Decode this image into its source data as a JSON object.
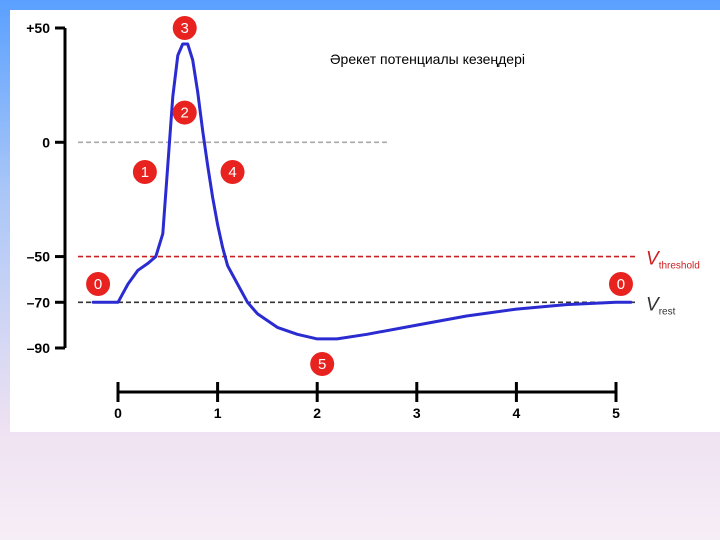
{
  "chart_data": {
    "type": "line",
    "title": "Әрекет потенциалы кезеңдері",
    "xlabel": "",
    "ylabel": "",
    "xlim": [
      0,
      5
    ],
    "ylim": [
      -90,
      50
    ],
    "x_ticks": [
      "0",
      "1",
      "2",
      "3",
      "4",
      "5"
    ],
    "y_ticks": [
      {
        "value": 50,
        "label": "+50"
      },
      {
        "value": 0,
        "label": "0"
      },
      {
        "value": -50,
        "label": "–50"
      },
      {
        "value": -70,
        "label": "–70"
      },
      {
        "value": -90,
        "label": "–90"
      }
    ],
    "series": [
      {
        "color": "#2a2bd0",
        "points": [
          [
            -0.25,
            -70
          ],
          [
            0.0,
            -70
          ],
          [
            0.1,
            -62
          ],
          [
            0.2,
            -56
          ],
          [
            0.3,
            -53
          ],
          [
            0.38,
            -50
          ],
          [
            0.45,
            -40
          ],
          [
            0.5,
            -10
          ],
          [
            0.55,
            20
          ],
          [
            0.6,
            38
          ],
          [
            0.65,
            43
          ],
          [
            0.7,
            43
          ],
          [
            0.75,
            36
          ],
          [
            0.8,
            22
          ],
          [
            0.85,
            5
          ],
          [
            0.9,
            -10
          ],
          [
            0.95,
            -24
          ],
          [
            1.0,
            -36
          ],
          [
            1.05,
            -46
          ],
          [
            1.1,
            -54
          ],
          [
            1.2,
            -62
          ],
          [
            1.3,
            -70
          ],
          [
            1.4,
            -75
          ],
          [
            1.6,
            -81
          ],
          [
            1.8,
            -84
          ],
          [
            2.0,
            -86
          ],
          [
            2.2,
            -86
          ],
          [
            2.5,
            -84
          ],
          [
            3.0,
            -80
          ],
          [
            3.5,
            -76
          ],
          [
            4.0,
            -73
          ],
          [
            4.5,
            -71
          ],
          [
            5.0,
            -70
          ],
          [
            5.15,
            -70
          ]
        ]
      }
    ],
    "reference_lines": [
      {
        "y": 0,
        "color": "#aaaaaa",
        "x_end": 2.7
      },
      {
        "y": -50,
        "color": "#cc1f1f",
        "label_main": "V",
        "label_sub": "threshold"
      },
      {
        "y": -70,
        "color": "#333333",
        "label_main": "V",
        "label_sub": "rest"
      }
    ],
    "phase_markers": [
      {
        "label": "3",
        "x": 0.67,
        "y": 50
      },
      {
        "label": "2",
        "x": 0.67,
        "y": 13
      },
      {
        "label": "1",
        "x": 0.27,
        "y": -13
      },
      {
        "label": "4",
        "x": 1.15,
        "y": -13
      },
      {
        "label": "0",
        "x": -0.2,
        "y": -62
      },
      {
        "label": "0",
        "x": 5.05,
        "y": -62
      },
      {
        "label": "5",
        "x": 2.05,
        "y": -97
      }
    ],
    "grid": false,
    "legend": "none"
  }
}
